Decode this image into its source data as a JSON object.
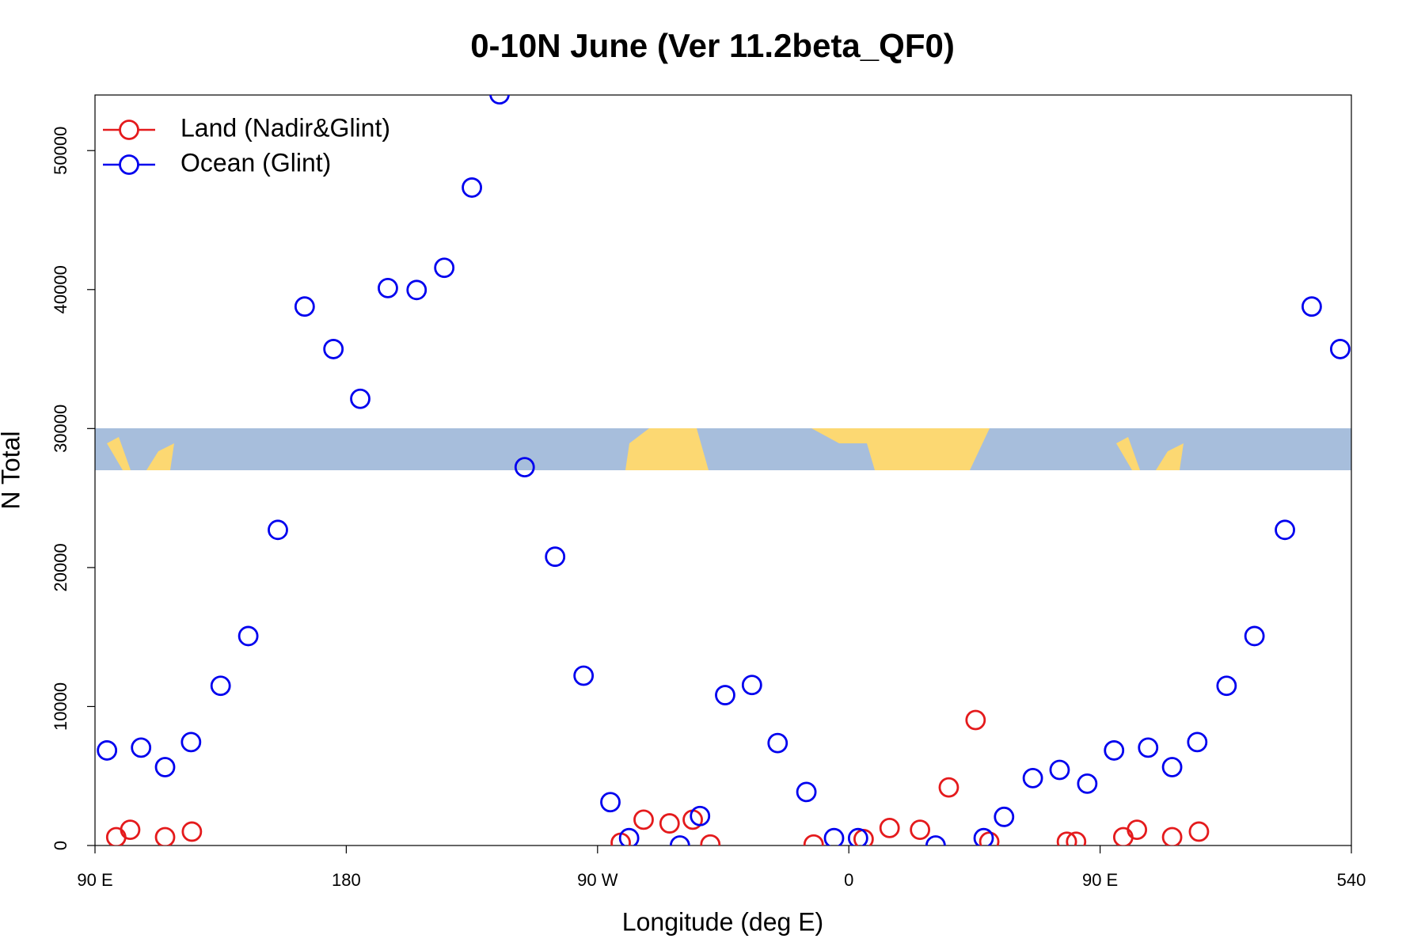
{
  "chart_data": {
    "type": "scatter",
    "title": "0-10N June (Ver 11.2beta_QF0)",
    "x_label": "Longitude (deg E)",
    "y_label": "N Total",
    "xlim": [
      90,
      540
    ],
    "ylim": [
      0,
      54000
    ],
    "xticks": [
      {
        "value": 90,
        "label": "90 E"
      },
      180,
      {
        "value": 270,
        "label": "90 W"
      },
      {
        "value": 360,
        "label": "0"
      },
      {
        "value": 450,
        "label": "90 E"
      },
      540
    ],
    "yticks": [
      0,
      10000,
      20000,
      30000,
      40000,
      50000
    ],
    "legend": "topleft",
    "series": [
      {
        "name": "Land (Nadir&Glint)",
        "color": "#e41a1c",
        "x": [
          97.6,
          102.6,
          115.1,
          124.7,
          278.3,
          286.5,
          295.8,
          304.1,
          310.4,
          347.4,
          365.3,
          374.6,
          385.5,
          395.8,
          405.4,
          410.3,
          438.1,
          441.4,
          458.3,
          463.2,
          475.8,
          485.4
        ],
        "values": [
          600,
          1130,
          600,
          1000,
          200,
          1860,
          1590,
          1860,
          70,
          70,
          460,
          1260,
          1130,
          4180,
          9030,
          270,
          270,
          270,
          600,
          1130,
          600,
          1000
        ]
      },
      {
        "name": "Ocean (Glint)",
        "color": "#0000ee",
        "x": [
          94.3,
          106.5,
          115.1,
          124.4,
          135.0,
          144.9,
          155.5,
          165.1,
          175.4,
          185.0,
          194.9,
          205.2,
          215.1,
          225.0,
          234.9,
          243.9,
          254.8,
          265.0,
          274.6,
          281.3,
          299.5,
          306.7,
          315.7,
          325.3,
          334.5,
          344.8,
          354.7,
          363.3,
          391.1,
          408.3,
          415.6,
          425.9,
          435.5,
          445.4,
          455.0,
          467.2,
          475.8,
          484.8,
          495.3,
          505.3,
          516.2,
          525.8,
          536.0
        ],
        "values": [
          6840,
          7040,
          5640,
          7440,
          11490,
          15070,
          22710,
          38780,
          35720,
          32140,
          40110,
          39970,
          41570,
          47340,
          54050,
          27220,
          20780,
          12220,
          3120,
          530,
          0,
          2120,
          10820,
          11550,
          7370,
          3850,
          530,
          530,
          0,
          530,
          2060,
          4850,
          5440,
          4450,
          6840,
          7040,
          5640,
          7440,
          11490,
          15070,
          22710,
          38780,
          35720
        ]
      }
    ]
  }
}
